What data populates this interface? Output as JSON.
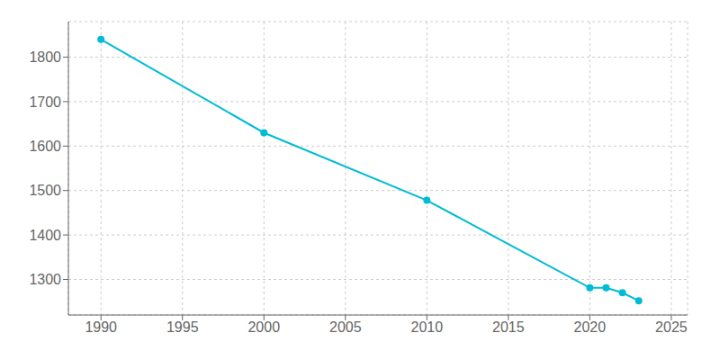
{
  "chart_data": {
    "type": "line",
    "x": [
      1990,
      2000,
      2010,
      2020,
      2021,
      2022,
      2023
    ],
    "values": [
      1840,
      1630,
      1478,
      1281,
      1281,
      1270,
      1252
    ],
    "color": "#00bcd4",
    "marker": "o",
    "xlim": [
      1988,
      2026
    ],
    "ylim": [
      1220,
      1880
    ],
    "xticks": [
      1990,
      1995,
      2000,
      2005,
      2010,
      2015,
      2020,
      2025
    ],
    "yticks": [
      1300,
      1400,
      1500,
      1600,
      1700,
      1800
    ],
    "grid": true
  }
}
